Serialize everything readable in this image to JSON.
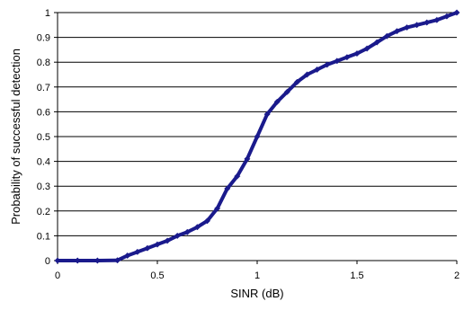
{
  "chart_data": {
    "type": "line",
    "title": "",
    "xlabel": "SINR (dB)",
    "ylabel": "Probability of successful detection",
    "xlim": [
      0,
      2
    ],
    "ylim": [
      0,
      1
    ],
    "x_ticks": [
      0,
      0.5,
      1,
      1.5,
      2
    ],
    "x_tick_labels": [
      "0",
      "0.5",
      "1",
      "1.5",
      "2"
    ],
    "y_ticks": [
      0,
      0.1,
      0.2,
      0.3,
      0.4,
      0.5,
      0.6,
      0.7,
      0.8,
      0.9,
      1
    ],
    "y_tick_labels": [
      "0",
      "0.1",
      "0.2",
      "0.3",
      "0.4",
      "0.5",
      "0.6",
      "0.7",
      "0.8",
      "0.9",
      "1"
    ],
    "grid": "horizontal",
    "legend": "none",
    "series": [
      {
        "color": "#1a1a8c",
        "marker": "diamond",
        "x": [
          0,
          0.1,
          0.2,
          0.3,
          0.35,
          0.4,
          0.45,
          0.5,
          0.55,
          0.6,
          0.65,
          0.7,
          0.75,
          0.8,
          0.85,
          0.9,
          0.95,
          1.0,
          1.05,
          1.1,
          1.15,
          1.2,
          1.25,
          1.3,
          1.35,
          1.4,
          1.45,
          1.5,
          1.55,
          1.6,
          1.65,
          1.7,
          1.75,
          1.8,
          1.85,
          1.9,
          1.95,
          2.0
        ],
        "y": [
          0,
          0,
          0,
          0.001,
          0.02,
          0.035,
          0.05,
          0.065,
          0.08,
          0.1,
          0.115,
          0.135,
          0.16,
          0.21,
          0.29,
          0.34,
          0.41,
          0.5,
          0.59,
          0.64,
          0.68,
          0.72,
          0.75,
          0.77,
          0.79,
          0.805,
          0.82,
          0.835,
          0.855,
          0.88,
          0.905,
          0.925,
          0.94,
          0.95,
          0.96,
          0.97,
          0.985,
          1.0
        ]
      }
    ]
  }
}
